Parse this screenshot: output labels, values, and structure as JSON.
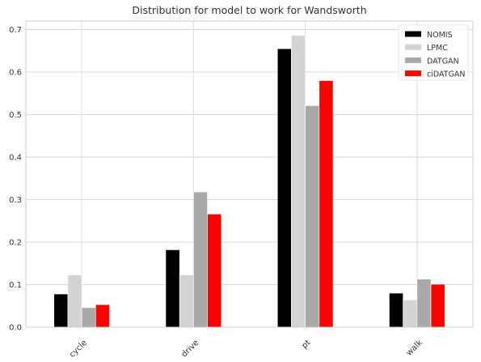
{
  "chart_data": {
    "type": "bar",
    "title": "Distribution for model to work for Wandsworth",
    "xlabel": "",
    "ylabel": "",
    "categories": [
      "cycle",
      "drive",
      "pt",
      "walk"
    ],
    "series": [
      {
        "name": "NOMIS",
        "color": "#000000",
        "values": [
          0.078,
          0.182,
          0.655,
          0.08
        ]
      },
      {
        "name": "LPMC",
        "color": "#d3d3d3",
        "values": [
          0.123,
          0.123,
          0.686,
          0.064
        ]
      },
      {
        "name": "DATGAN",
        "color": "#a9a9a9",
        "values": [
          0.046,
          0.318,
          0.521,
          0.113
        ]
      },
      {
        "name": "ciDATGAN",
        "color": "#ff0000",
        "values": [
          0.053,
          0.266,
          0.58,
          0.101
        ]
      }
    ],
    "ylim": [
      0,
      0.72
    ],
    "yticks": [
      "0.0",
      "0.1",
      "0.2",
      "0.3",
      "0.4",
      "0.5",
      "0.6",
      "0.7"
    ],
    "grid": true,
    "legend_position": "top-right",
    "xtick_rotation": "45 degrees"
  }
}
